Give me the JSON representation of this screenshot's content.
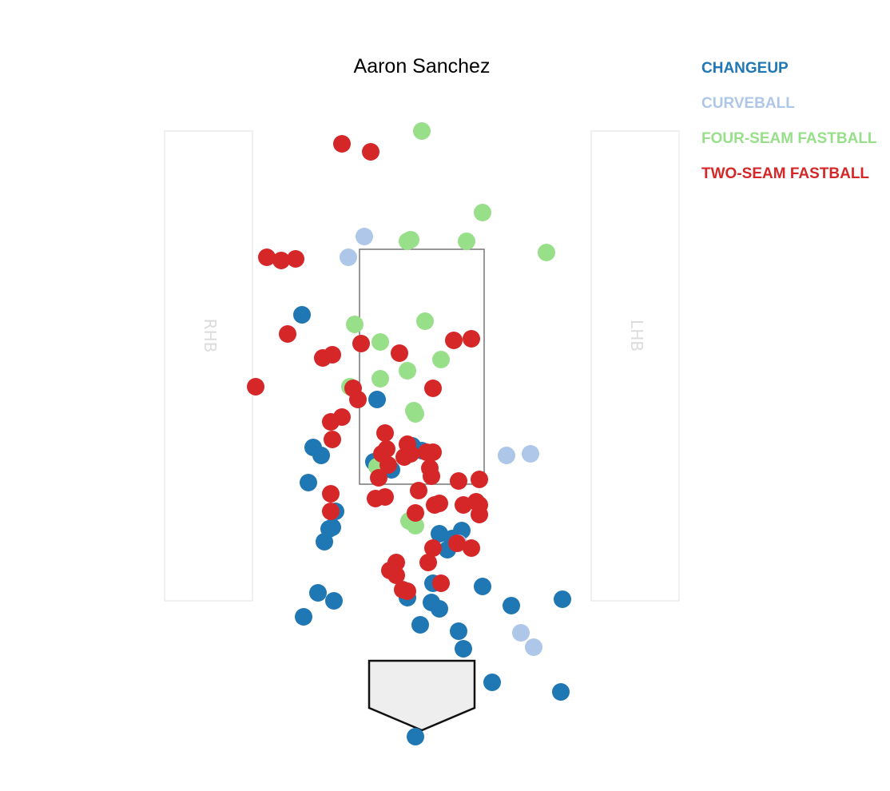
{
  "chart_data": {
    "type": "scatter",
    "title": "Aaron Sanchez",
    "batter_box_labels": {
      "left": "RHB",
      "right": "LHB"
    },
    "legend_placement": "top-right",
    "series": [
      {
        "name": "CHANGEUP",
        "color": "#1f77b4",
        "points": [
          [
            -0.75,
            2.46
          ],
          [
            -0.28,
            1.93
          ],
          [
            -0.68,
            1.63
          ],
          [
            -0.63,
            1.58
          ],
          [
            -0.71,
            1.41
          ],
          [
            -0.3,
            1.54
          ],
          [
            -0.19,
            1.49
          ],
          [
            0.0,
            1.61
          ],
          [
            -0.06,
            1.64
          ],
          [
            -0.58,
            1.12
          ],
          [
            -0.61,
            1.04
          ],
          [
            0.11,
            1.09
          ],
          [
            0.19,
            1.06
          ],
          [
            0.25,
            1.11
          ],
          [
            0.16,
            0.99
          ],
          [
            -0.56,
            1.13
          ],
          [
            -0.54,
            1.23
          ],
          [
            -0.65,
            0.72
          ],
          [
            -0.55,
            0.67
          ],
          [
            -0.74,
            0.57
          ],
          [
            -0.09,
            0.69
          ],
          [
            0.07,
            0.78
          ],
          [
            0.06,
            0.66
          ],
          [
            0.11,
            0.62
          ],
          [
            0.38,
            0.76
          ],
          [
            0.56,
            0.64
          ],
          [
            0.88,
            0.68
          ],
          [
            -0.01,
            0.52
          ],
          [
            0.23,
            0.48
          ],
          [
            0.26,
            0.37
          ],
          [
            0.44,
            0.16
          ],
          [
            0.87,
            0.1
          ],
          [
            -0.04,
            -0.18
          ]
        ]
      },
      {
        "name": "CURVEBALL",
        "color": "#aec7e8",
        "points": [
          [
            -0.36,
            2.95
          ],
          [
            -0.46,
            2.82
          ],
          [
            0.53,
            1.58
          ],
          [
            0.68,
            1.59
          ],
          [
            0.23,
            1.03
          ],
          [
            0.62,
            0.47
          ],
          [
            0.7,
            0.38
          ]
        ]
      },
      {
        "name": "FOUR-SEAM FASTBALL",
        "color": "#98df8a",
        "points": [
          [
            0.0,
            3.61
          ],
          [
            0.38,
            3.1
          ],
          [
            -0.07,
            2.93
          ],
          [
            -0.09,
            2.92
          ],
          [
            0.28,
            2.92
          ],
          [
            0.78,
            2.85
          ],
          [
            -0.42,
            2.4
          ],
          [
            0.02,
            2.42
          ],
          [
            -0.26,
            2.29
          ],
          [
            0.12,
            2.18
          ],
          [
            -0.09,
            2.11
          ],
          [
            -0.26,
            2.06
          ],
          [
            -0.45,
            2.01
          ],
          [
            -0.05,
            1.86
          ],
          [
            -0.04,
            1.84
          ],
          [
            -0.28,
            1.51
          ],
          [
            -0.08,
            1.17
          ],
          [
            -0.04,
            1.14
          ]
        ]
      },
      {
        "name": "TWO-SEAM FASTBALL",
        "color": "#d62728",
        "points": [
          [
            -0.5,
            3.53
          ],
          [
            -0.32,
            3.48
          ],
          [
            -0.97,
            2.82
          ],
          [
            -0.88,
            2.8
          ],
          [
            -0.79,
            2.81
          ],
          [
            -0.84,
            2.34
          ],
          [
            -1.04,
            2.01
          ],
          [
            -0.56,
            2.21
          ],
          [
            -0.62,
            2.19
          ],
          [
            -0.38,
            2.28
          ],
          [
            -0.14,
            2.22
          ],
          [
            0.2,
            2.3
          ],
          [
            0.31,
            2.31
          ],
          [
            -0.57,
            1.79
          ],
          [
            -0.4,
            1.93
          ],
          [
            -0.43,
            2.0
          ],
          [
            0.07,
            2.0
          ],
          [
            -0.5,
            1.82
          ],
          [
            -0.56,
            1.68
          ],
          [
            -0.23,
            1.72
          ],
          [
            -0.09,
            1.65
          ],
          [
            -0.25,
            1.59
          ],
          [
            -0.22,
            1.62
          ],
          [
            0.03,
            1.6
          ],
          [
            0.07,
            1.6
          ],
          [
            -0.21,
            1.52
          ],
          [
            -0.11,
            1.57
          ],
          [
            -0.07,
            1.59
          ],
          [
            -0.29,
            1.31
          ],
          [
            -0.27,
            1.44
          ],
          [
            0.23,
            1.42
          ],
          [
            0.36,
            1.43
          ],
          [
            0.05,
            1.5
          ],
          [
            0.06,
            1.45
          ],
          [
            -0.23,
            1.32
          ],
          [
            -0.02,
            1.36
          ],
          [
            0.11,
            1.28
          ],
          [
            -0.57,
            1.34
          ],
          [
            -0.57,
            1.23
          ],
          [
            -0.04,
            1.22
          ],
          [
            0.36,
            1.27
          ],
          [
            0.26,
            1.27
          ],
          [
            0.36,
            1.21
          ],
          [
            0.08,
            1.27
          ],
          [
            0.34,
            1.29
          ],
          [
            -0.16,
            0.91
          ],
          [
            -0.16,
            0.83
          ],
          [
            -0.2,
            0.86
          ],
          [
            -0.09,
            0.73
          ],
          [
            -0.12,
            0.74
          ],
          [
            0.07,
            1.0
          ],
          [
            0.04,
            0.91
          ],
          [
            0.31,
            1.0
          ],
          [
            0.22,
            1.03
          ],
          [
            0.12,
            0.78
          ]
        ]
      }
    ]
  }
}
